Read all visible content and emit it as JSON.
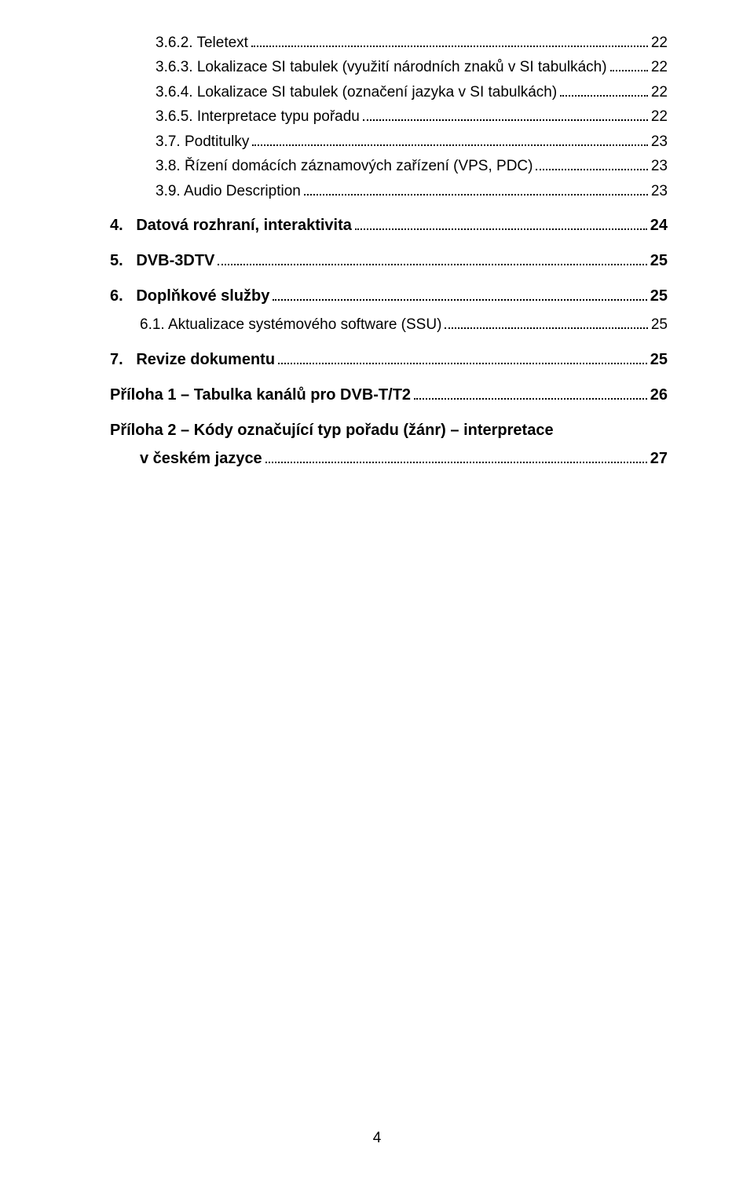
{
  "toc": {
    "lvl3": [
      {
        "num": "3.6.2.",
        "title": "Teletext",
        "page": "22"
      },
      {
        "num": "3.6.3.",
        "title": "Lokalizace SI tabulek (využití národních znaků v SI tabulkách)",
        "page": "22"
      },
      {
        "num": "3.6.4.",
        "title": "Lokalizace SI tabulek (označení jazyka v SI tabulkách)",
        "page": "22"
      },
      {
        "num": "3.6.5.",
        "title": "Interpretace typu pořadu",
        "page": "22"
      },
      {
        "num": "3.7.",
        "title": "Podtitulky",
        "page": "23"
      },
      {
        "num": "3.8.",
        "title": "Řízení domácích záznamových zařízení (VPS, PDC)",
        "page": "23"
      },
      {
        "num": "3.9.",
        "title": "Audio Description",
        "page": "23"
      }
    ],
    "item4": {
      "num": "4.",
      "title": "Datová rozhraní, interaktivita",
      "page": "24"
    },
    "item5": {
      "num": "5.",
      "title": "DVB-3DTV",
      "page": "25"
    },
    "item6": {
      "num": "6.",
      "title": "Doplňkové služby",
      "page": "25"
    },
    "item6_1": {
      "num": "6.1.",
      "title": "Aktualizace systémového software (SSU)",
      "page": "25"
    },
    "item7": {
      "num": "7.",
      "title": "Revize dokumentu",
      "page": "25"
    },
    "appendix1": {
      "title": "Příloha 1 – Tabulka kanálů pro DVB-T/T2",
      "page": "26"
    },
    "appendix2_line1": "Příloha 2 – Kódy označující typ pořadu (žánr) – interpretace",
    "appendix2_line2": {
      "title": "v českém jazyce",
      "page": "27"
    }
  },
  "footer_page": "4"
}
